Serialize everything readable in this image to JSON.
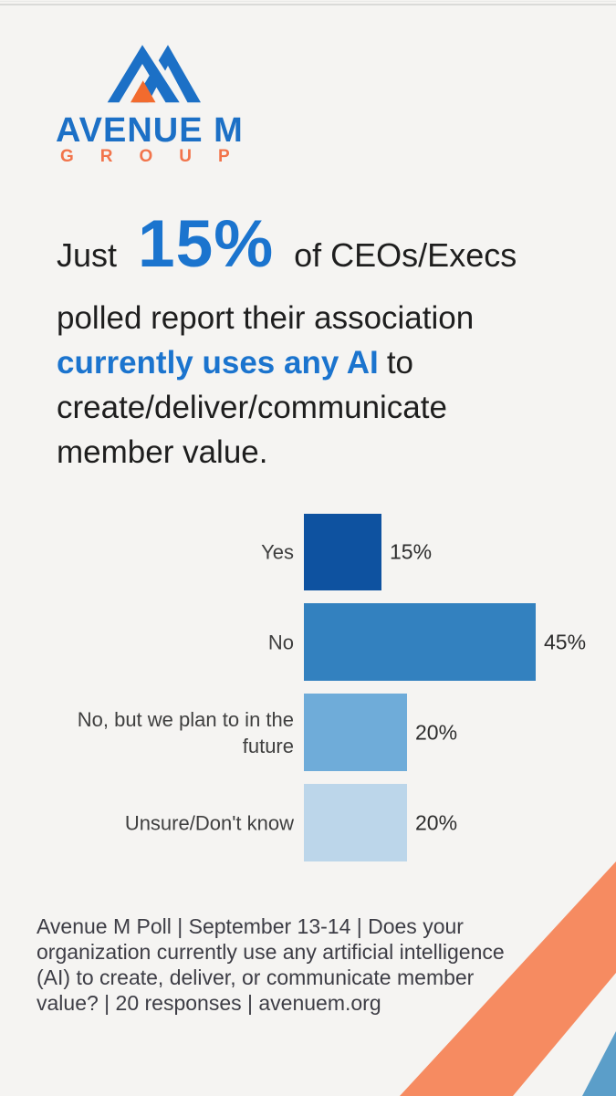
{
  "page": {
    "background": "#F5F4F2"
  },
  "logo": {
    "brand": "AVENUE M",
    "sub": "GROUP",
    "colors": {
      "blue": "#1C70C6",
      "orange_text": "#F2744B",
      "orange_mark": "#F26B2E"
    }
  },
  "headline": {
    "prefix": "Just",
    "stat": "15%",
    "line1_suffix": "of CEOs/Execs",
    "line2": "polled report their association",
    "line3_highlight": "currently uses any AI",
    "line3_suffix": "to",
    "line4": "create/deliver/communicate",
    "line5": "member value.",
    "highlight_color": "#1B74CE",
    "text_color": "#1E1E1E"
  },
  "chart_data": {
    "type": "bar",
    "orientation": "horizontal",
    "categories": [
      "Yes",
      "No",
      "No, but we plan to in the future",
      "Unsure/Don't know"
    ],
    "values": [
      15,
      45,
      20,
      20
    ],
    "value_labels": [
      "15%",
      "45%",
      "20%",
      "20%"
    ],
    "bar_colors": [
      "#0E52A0",
      "#3381BF",
      "#6FACD9",
      "#BCD6EA"
    ],
    "xlim": [
      0,
      50
    ],
    "grid": false,
    "legend": false,
    "title": ""
  },
  "footer": {
    "lines": [
      "Avenue M Poll | September 13-14 | Does your",
      "organization currently use any artificial intelligence",
      "(AI) to create, deliver, or communicate member",
      "value? | 20 responses | avenuem.org"
    ]
  },
  "decor": {
    "orange_stripe": "#F68B61",
    "blue_triangle": "#5B9EC9"
  }
}
